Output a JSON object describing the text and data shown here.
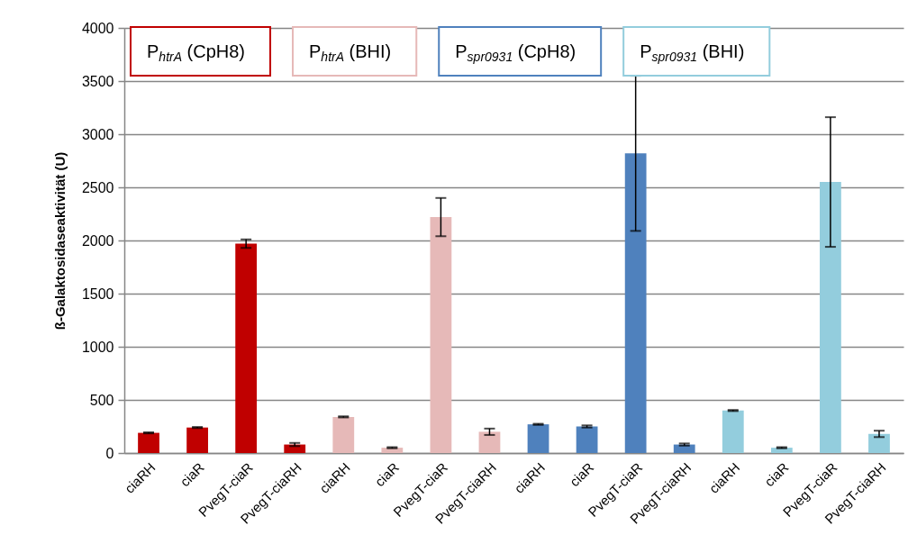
{
  "chart_data": {
    "type": "bar",
    "ylabel": "ß-Galaktosidaseaktivität (U)",
    "categories": [
      "ciaRH",
      "ciaR",
      "PvegT-ciaR",
      "PvegT-ciaRH",
      "ciaRH",
      "ciaR",
      "PvegT-ciaR",
      "PvegT-ciaRH",
      "ciaRH",
      "ciaR",
      "PvegT-ciaR",
      "PvegT-ciaRH",
      "ciaRH",
      "ciaR",
      "PvegT-ciaR",
      "PvegT-ciaRH"
    ],
    "series": [
      {
        "name": "P$_{htrA}$ (CpH8)",
        "color": "#c00000",
        "values": [
          190,
          240,
          1970,
          80,
          null,
          null,
          null,
          null,
          null,
          null,
          null,
          null,
          null,
          null,
          null,
          null
        ],
        "errors": [
          5,
          5,
          40,
          15,
          null,
          null,
          null,
          null,
          null,
          null,
          null,
          null,
          null,
          null,
          null,
          null
        ]
      },
      {
        "name": "P$_{htrA}$ (BHI)",
        "color": "#e6b9b8",
        "values": [
          null,
          null,
          null,
          null,
          340,
          50,
          2220,
          200,
          null,
          null,
          null,
          null,
          null,
          null,
          null,
          null
        ],
        "errors": [
          null,
          null,
          null,
          null,
          5,
          5,
          180,
          30,
          null,
          null,
          null,
          null,
          null,
          null,
          null,
          null
        ]
      },
      {
        "name": "P$_{spr0931}$ (CpH8)",
        "color": "#4f81bd",
        "values": [
          null,
          null,
          null,
          null,
          null,
          null,
          null,
          null,
          270,
          250,
          2820,
          80,
          null,
          null,
          null,
          null
        ],
        "errors": [
          null,
          null,
          null,
          null,
          null,
          null,
          null,
          null,
          5,
          10,
          730,
          10,
          null,
          null,
          null,
          null
        ]
      },
      {
        "name": "P$_{spr0931}$ (BHI)",
        "color": "#93cddd",
        "values": [
          null,
          null,
          null,
          null,
          null,
          null,
          null,
          null,
          null,
          null,
          null,
          null,
          400,
          50,
          2550,
          180
        ],
        "errors": [
          null,
          null,
          null,
          null,
          null,
          null,
          null,
          null,
          null,
          null,
          null,
          null,
          5,
          5,
          610,
          30
        ]
      }
    ],
    "ylim": [
      0,
      4000
    ],
    "yticks": [
      0,
      500,
      1000,
      1500,
      2000,
      2500,
      3000,
      3500,
      4000
    ],
    "grid": "y",
    "legend": "top"
  }
}
